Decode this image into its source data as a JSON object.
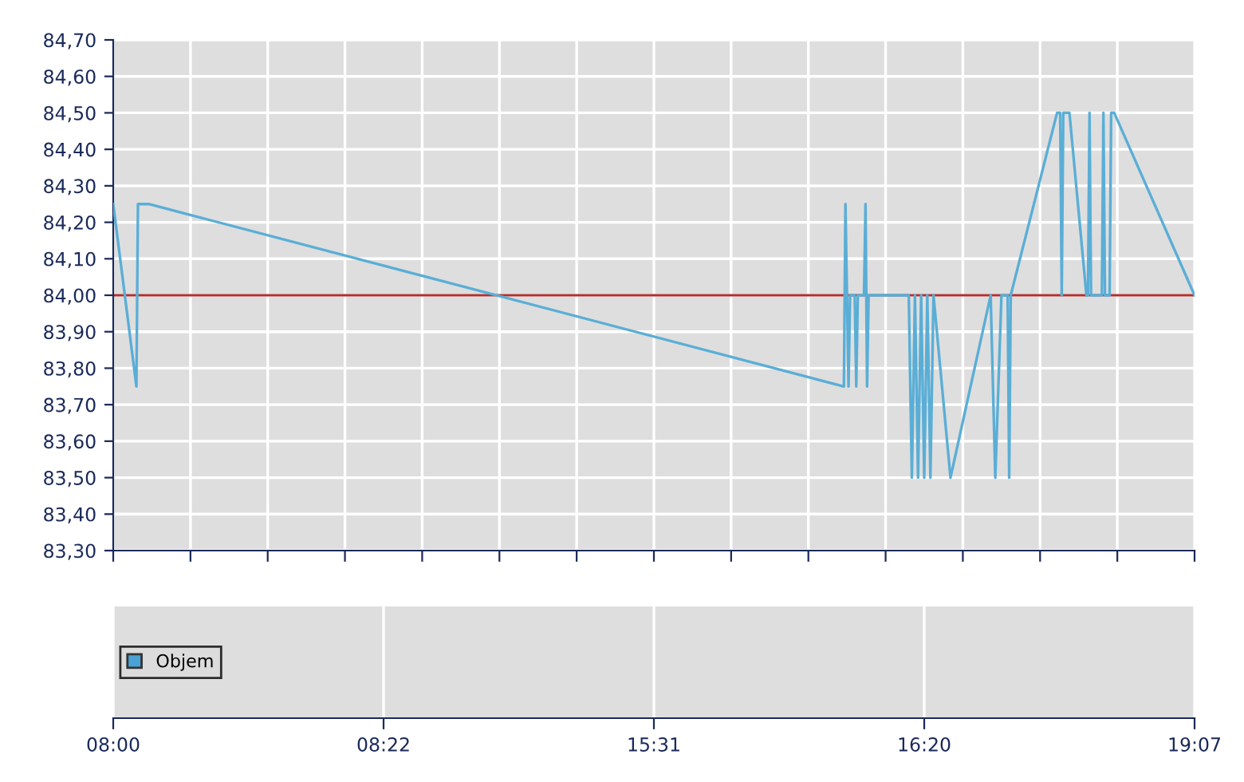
{
  "chart_data": [
    {
      "type": "line",
      "categories": [
        null,
        null,
        null,
        null,
        null,
        null,
        null,
        null,
        null,
        null,
        null,
        null,
        null,
        null,
        null,
        null,
        null,
        null,
        null,
        null,
        null,
        null,
        null,
        null,
        null,
        null,
        null,
        null,
        null,
        null,
        null,
        null,
        null,
        null,
        null,
        null,
        null,
        null,
        null,
        null,
        null,
        null,
        null,
        null,
        null,
        null,
        null,
        null,
        null,
        null,
        null,
        null,
        null,
        null,
        null,
        null,
        null,
        null,
        null,
        null,
        null,
        null,
        null,
        null,
        null,
        null,
        null,
        null,
        null,
        null,
        null,
        null,
        null,
        null,
        null,
        null,
        null,
        null,
        null,
        null,
        null,
        null,
        null,
        null,
        null,
        null,
        null,
        null,
        null,
        null,
        null,
        null,
        null,
        null,
        null,
        null,
        null,
        null,
        null,
        null,
        null,
        null,
        null,
        null,
        null,
        null,
        null,
        null,
        null,
        null,
        null,
        null,
        null,
        null,
        null,
        null,
        null,
        null,
        null,
        null,
        null,
        null,
        null,
        null,
        null,
        null,
        null,
        null,
        null,
        null,
        null,
        null,
        null,
        null,
        null,
        null,
        null,
        null,
        null,
        null,
        null,
        null,
        null,
        null,
        null,
        null,
        null,
        null,
        null,
        null,
        null,
        null,
        null,
        null,
        null,
        null,
        null,
        null,
        null,
        null,
        null,
        null,
        null,
        null,
        null,
        null,
        null,
        null,
        null,
        null,
        null,
        null,
        null,
        null,
        null,
        null,
        null,
        null,
        null,
        null,
        null,
        null,
        null,
        null,
        null,
        null,
        null,
        null,
        null,
        null,
        null,
        null,
        null,
        null,
        null,
        null,
        null,
        null,
        null,
        null,
        null,
        null,
        null,
        null,
        null,
        null,
        null,
        null,
        null,
        null,
        null,
        null,
        null,
        null,
        null,
        null,
        null,
        null,
        null,
        null,
        null,
        null,
        null,
        null,
        null,
        null,
        null,
        null,
        null,
        null,
        null,
        null,
        null,
        null,
        null,
        null,
        null,
        null,
        null,
        null,
        null,
        null,
        null,
        null,
        null,
        null,
        null,
        null,
        null,
        null,
        null,
        null,
        null,
        null,
        null,
        null,
        null,
        null,
        null,
        null,
        null,
        null,
        null,
        null,
        null,
        null,
        null,
        null,
        null,
        null,
        null,
        null,
        null,
        null,
        null,
        null,
        null,
        null,
        null,
        null,
        null,
        null,
        null,
        null,
        null,
        null,
        null,
        null,
        null,
        null,
        null,
        null,
        null,
        null,
        null,
        null,
        null,
        null,
        null,
        null,
        null,
        null,
        null,
        null,
        null,
        null,
        null,
        null,
        null,
        null,
        null,
        null,
        null,
        null,
        null,
        null,
        null,
        null,
        null,
        null,
        null,
        null,
        null,
        null,
        null,
        null,
        null,
        null,
        null,
        null,
        null,
        null,
        null,
        null,
        null,
        null,
        null,
        null,
        null,
        null,
        null,
        null,
        null,
        null,
        null,
        null,
        null,
        null,
        null,
        null,
        null,
        null,
        null,
        null,
        null,
        null,
        null,
        null,
        null,
        null,
        null,
        null,
        null,
        null,
        null,
        null,
        null,
        null,
        null,
        null,
        null,
        null,
        null,
        null,
        null,
        null,
        null,
        null,
        null,
        null,
        null,
        null,
        null,
        null,
        null,
        null,
        null,
        null,
        null,
        null,
        null,
        null,
        null,
        null,
        null,
        null,
        null,
        null,
        null,
        null,
        null,
        null,
        null,
        null,
        null,
        null,
        null,
        null,
        null,
        null,
        null,
        null,
        null,
        null,
        null,
        null,
        null,
        null,
        null,
        null,
        null,
        null,
        null,
        null,
        null,
        null,
        null,
        null,
        null,
        null,
        null,
        null,
        null,
        null,
        null,
        null,
        null,
        null,
        null,
        null,
        null,
        null,
        null,
        null,
        null,
        null,
        null,
        null,
        null,
        null,
        null,
        null,
        null,
        null,
        null,
        null,
        null,
        null,
        null,
        null,
        null,
        null,
        null,
        null,
        null,
        null,
        null,
        null,
        null,
        null,
        null,
        null,
        null,
        null,
        null,
        null,
        null,
        null,
        null,
        null,
        null,
        null,
        null,
        null,
        null,
        null,
        null,
        null,
        null,
        null,
        null,
        null,
        null,
        null,
        null,
        null,
        null,
        null,
        null,
        null,
        null,
        null,
        null,
        null,
        null,
        null,
        null,
        null,
        null,
        null,
        null,
        null,
        null,
        null,
        null,
        null,
        null,
        null,
        null,
        null,
        null,
        null,
        null,
        null,
        null,
        null,
        null,
        null,
        null,
        null,
        null,
        null,
        null,
        null,
        null,
        null,
        null,
        null,
        null,
        null,
        null,
        null,
        null,
        null,
        null,
        null,
        null,
        null,
        null,
        null,
        null,
        null,
        null,
        null,
        null,
        null,
        null,
        null,
        null,
        null,
        null,
        null,
        null,
        null,
        null,
        null,
        null,
        null,
        null,
        null,
        null,
        null,
        null,
        null,
        null,
        null,
        null,
        null,
        null,
        null,
        null,
        null,
        null,
        null,
        null,
        null,
        null,
        null,
        null,
        null,
        null,
        null,
        null,
        null,
        null,
        null,
        null,
        null,
        null,
        null,
        null,
        null,
        null,
        null,
        null,
        null,
        null,
        null,
        null,
        null,
        null,
        null,
        null,
        null,
        null,
        null,
        null,
        null,
        null,
        null,
        null,
        null,
        null,
        null,
        null,
        null,
        null,
        null,
        null,
        null,
        null,
        null,
        null,
        null,
        null,
        null,
        null,
        null,
        null,
        null,
        null,
        null,
        null,
        null,
        null,
        null,
        null,
        null,
        null,
        null,
        null,
        null,
        null,
        null,
        null,
        null,
        null,
        null,
        null,
        null,
        null,
        null,
        null,
        null,
        null,
        null,
        null,
        null,
        null,
        null,
        null,
        null,
        null,
        null,
        null,
        null,
        null,
        null,
        null,
        null,
        null,
        null,
        null,
        null,
        null,
        null,
        null,
        null,
        null,
        null,
        null,
        null,
        null,
        null,
        null,
        null,
        null,
        null,
        null,
        null,
        null
      ],
      "series": [
        {
          "color": "#5aaed6",
          "values": [
            84.25,
            null,
            null,
            null,
            null,
            null,
            null,
            null,
            null,
            null,
            null,
            null,
            null,
            null,
            null,
            83.75,
            84.25,
            null,
            null,
            null,
            null,
            null,
            null,
            84.25,
            null,
            null,
            null,
            null,
            null,
            null,
            null,
            null,
            null,
            null,
            null,
            null,
            null,
            null,
            null,
            null,
            null,
            null,
            null,
            null,
            null,
            null,
            null,
            null,
            null,
            null,
            null,
            null,
            null,
            null,
            null,
            null,
            null,
            null,
            null,
            null,
            null,
            null,
            null,
            null,
            null,
            null,
            null,
            null,
            null,
            null,
            null,
            null,
            null,
            null,
            null,
            null,
            null,
            null,
            null,
            null,
            null,
            null,
            null,
            null,
            null,
            null,
            null,
            null,
            null,
            null,
            null,
            null,
            null,
            null,
            null,
            null,
            null,
            null,
            null,
            null,
            null,
            null,
            null,
            null,
            null,
            null,
            null,
            null,
            null,
            null,
            null,
            null,
            null,
            null,
            null,
            null,
            null,
            null,
            null,
            null,
            null,
            null,
            null,
            null,
            null,
            null,
            null,
            null,
            null,
            null,
            null,
            null,
            null,
            null,
            null,
            null,
            null,
            null,
            null,
            null,
            null,
            null,
            null,
            null,
            null,
            null,
            null,
            null,
            null,
            null,
            null,
            null,
            null,
            null,
            null,
            null,
            null,
            null,
            null,
            null,
            null,
            null,
            null,
            null,
            null,
            null,
            null,
            null,
            null,
            null,
            null,
            null,
            null,
            null,
            null,
            null,
            null,
            null,
            null,
            null,
            null,
            null,
            null,
            null,
            null,
            null,
            null,
            null,
            null,
            null,
            null,
            null,
            null,
            null,
            null,
            null,
            null,
            null,
            null,
            null,
            null,
            null,
            null,
            null,
            null,
            null,
            null,
            null,
            null,
            null,
            null,
            null,
            null,
            null,
            null,
            null,
            null,
            null,
            null,
            null,
            null,
            null,
            null,
            null,
            null,
            null,
            null,
            null,
            null,
            null,
            null,
            null,
            null,
            null,
            null,
            null,
            null,
            null,
            null,
            null,
            null,
            null,
            null,
            null,
            null,
            null,
            null,
            null,
            null,
            null,
            null,
            null,
            null,
            null,
            null,
            null,
            null,
            null,
            null,
            null,
            null,
            null,
            null,
            null,
            null,
            null,
            null,
            null,
            null,
            null,
            null,
            null,
            null,
            null,
            null,
            null,
            null,
            null,
            null,
            null,
            null,
            null,
            null,
            null,
            null,
            null,
            null,
            null,
            null,
            null,
            null,
            null,
            null,
            null,
            null,
            null,
            null,
            null,
            null,
            null,
            null,
            null,
            null,
            null,
            null,
            null,
            null,
            null,
            null,
            null,
            null,
            null,
            null,
            null,
            null,
            null,
            null,
            null,
            null,
            null,
            null,
            null,
            null,
            null,
            null,
            null,
            null,
            null,
            null,
            null,
            null,
            null,
            null,
            null,
            null,
            null,
            null,
            null,
            null,
            null,
            null,
            null,
            null,
            null,
            null,
            null,
            null,
            null,
            null,
            null,
            null,
            null,
            null,
            null,
            null,
            null,
            null,
            null,
            null,
            null,
            null,
            null,
            null,
            null,
            null,
            null,
            null,
            null,
            null,
            null,
            null,
            null,
            null,
            null,
            null,
            null,
            null,
            null,
            null,
            null,
            null,
            null,
            null,
            null,
            null,
            null,
            null,
            null,
            null,
            null,
            null,
            null,
            null,
            null,
            null,
            null,
            null,
            null,
            null,
            null,
            null,
            null,
            null,
            null,
            null,
            null,
            null,
            null,
            null,
            null,
            null,
            null,
            null,
            null,
            null,
            null,
            null,
            null,
            null,
            null,
            null,
            null,
            null,
            null,
            null,
            null,
            null,
            null,
            null,
            null,
            null,
            null,
            null,
            null,
            null,
            null,
            null,
            null,
            null,
            null,
            null,
            null,
            null,
            null,
            null,
            null,
            null,
            null,
            null,
            null,
            null,
            null,
            null,
            null,
            null,
            null,
            null,
            null,
            null,
            null,
            null,
            null,
            null,
            null,
            null,
            null,
            null,
            null,
            null,
            null,
            null,
            null,
            null,
            83.75,
            84.25,
            null,
            83.75,
            84.0,
            null,
            null,
            84.0,
            83.75,
            84.0,
            null,
            null,
            null,
            84.0,
            84.25,
            83.75,
            84.0,
            null,
            null,
            null,
            null,
            null,
            null,
            null,
            null,
            null,
            null,
            null,
            null,
            null,
            null,
            null,
            null,
            null,
            null,
            null,
            null,
            null,
            null,
            null,
            null,
            null,
            84.0,
            null,
            83.5,
            null,
            84.0,
            null,
            83.5,
            null,
            84.0,
            null,
            83.5,
            null,
            84.0,
            null,
            83.5,
            null,
            84.0,
            null,
            null,
            null,
            null,
            null,
            null,
            null,
            null,
            null,
            null,
            83.5,
            null,
            null,
            null,
            null,
            null,
            null,
            null,
            null,
            null,
            null,
            null,
            null,
            null,
            null,
            null,
            null,
            null,
            null,
            null,
            null,
            null,
            null,
            null,
            null,
            null,
            84.0,
            null,
            null,
            83.5,
            null,
            null,
            null,
            84.0,
            null,
            null,
            null,
            84.0,
            83.5,
            84.0,
            null,
            null,
            null,
            null,
            null,
            null,
            null,
            null,
            null,
            null,
            null,
            null,
            null,
            null,
            null,
            null,
            null,
            null,
            null,
            null,
            null,
            null,
            null,
            null,
            null,
            null,
            null,
            null,
            null,
            84.5,
            null,
            84.5,
            84.0,
            84.5,
            null,
            null,
            null,
            84.5,
            null,
            null,
            null,
            null,
            null,
            null,
            null,
            null,
            null,
            null,
            84.0,
            84.0,
            84.5,
            84.0,
            null,
            null,
            null,
            null,
            null,
            null,
            84.0,
            84.5,
            84.0,
            null,
            null,
            84.0,
            84.5,
            null,
            84.5,
            null,
            null,
            null,
            null,
            null,
            null,
            null,
            null,
            null,
            null,
            null,
            null,
            null,
            null,
            null,
            null,
            null,
            null,
            null,
            null,
            null,
            null,
            null,
            null,
            null,
            null,
            null,
            null,
            null,
            null,
            null,
            null,
            null,
            null,
            null,
            null,
            null,
            null,
            null,
            null,
            null,
            null,
            null,
            null,
            null,
            null,
            null,
            null,
            null,
            null,
            null,
            84.0
          ]
        }
      ],
      "ylim": [
        83.3,
        84.7
      ],
      "yticks": [
        {
          "value": 83.3,
          "label": "83,30"
        },
        {
          "value": 83.4,
          "label": "83,40"
        },
        {
          "value": 83.5,
          "label": "83,50"
        },
        {
          "value": 83.6,
          "label": "83,60"
        },
        {
          "value": 83.7,
          "label": "83,70"
        },
        {
          "value": 83.8,
          "label": "83,80"
        },
        {
          "value": 83.9,
          "label": "83,90"
        },
        {
          "value": 84.0,
          "label": "84,00"
        },
        {
          "value": 84.1,
          "label": "84,10"
        },
        {
          "value": 84.2,
          "label": "84,20"
        },
        {
          "value": 84.3,
          "label": "84,30"
        },
        {
          "value": 84.4,
          "label": "84,40"
        },
        {
          "value": 84.5,
          "label": "84,50"
        },
        {
          "value": 84.6,
          "label": "84,60"
        },
        {
          "value": 84.7,
          "label": "84,70"
        }
      ],
      "ref_lines": [
        {
          "axis": "y",
          "value": 84.0,
          "color": "#b03030"
        }
      ],
      "grid": true,
      "tick_labels": "y"
    },
    {
      "type": "other",
      "categories": [
        "08:00",
        "08:22",
        "15:31",
        "16:20",
        "19:07"
      ],
      "series": [
        {
          "name": "Objem",
          "color": "#4aa3d4",
          "values": [
            null,
            null,
            null,
            null,
            null
          ]
        }
      ],
      "legend": "left"
    }
  ]
}
